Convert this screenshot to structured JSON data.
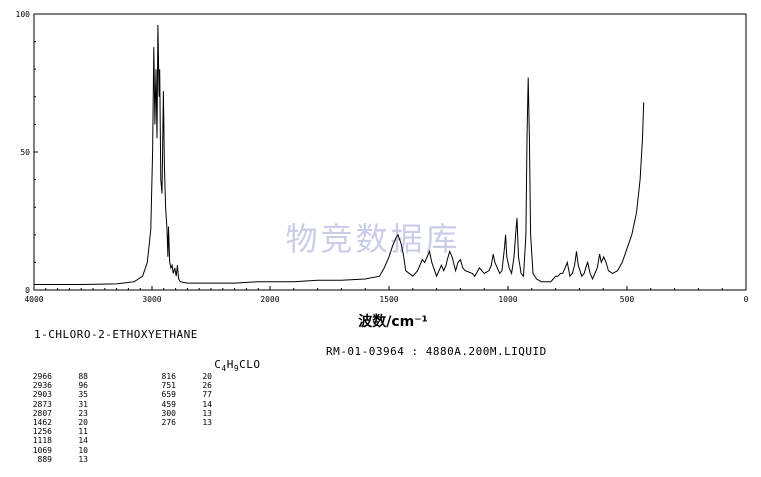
{
  "chart_data": {
    "type": "line",
    "xlabel": "波数/cm⁻¹",
    "ylabel": "",
    "xlim": [
      4000,
      0
    ],
    "ylim": [
      0,
      100
    ],
    "x_ticks": [
      "4000",
      "3000",
      "2000",
      "1500",
      "1000",
      "500",
      "0"
    ],
    "y_ticks": [
      "100",
      "50",
      "0"
    ],
    "watermark": "物竞数据库",
    "colors": {
      "line": "#000000",
      "watermark": "#c9cde8"
    },
    "series": [
      {
        "points": [
          [
            4000,
            2
          ],
          [
            3600,
            2
          ],
          [
            3300,
            2.2
          ],
          [
            3150,
            3
          ],
          [
            3080,
            5
          ],
          [
            3040,
            10
          ],
          [
            3010,
            22
          ],
          [
            2995,
            50
          ],
          [
            2985,
            88
          ],
          [
            2975,
            60
          ],
          [
            2966,
            80
          ],
          [
            2958,
            55
          ],
          [
            2950,
            96
          ],
          [
            2940,
            70
          ],
          [
            2935,
            80
          ],
          [
            2925,
            40
          ],
          [
            2915,
            35
          ],
          [
            2903,
            72
          ],
          [
            2895,
            45
          ],
          [
            2885,
            30
          ],
          [
            2873,
            22
          ],
          [
            2865,
            12
          ],
          [
            2860,
            23
          ],
          [
            2850,
            10
          ],
          [
            2840,
            8
          ],
          [
            2830,
            9
          ],
          [
            2820,
            6
          ],
          [
            2807,
            8
          ],
          [
            2795,
            5
          ],
          [
            2785,
            9
          ],
          [
            2775,
            4
          ],
          [
            2760,
            3
          ],
          [
            2700,
            2.5
          ],
          [
            2500,
            2.5
          ],
          [
            2300,
            2.5
          ],
          [
            2100,
            3
          ],
          [
            2000,
            3
          ],
          [
            1900,
            3
          ],
          [
            1800,
            3.5
          ],
          [
            1700,
            3.5
          ],
          [
            1600,
            4
          ],
          [
            1540,
            5
          ],
          [
            1520,
            8
          ],
          [
            1500,
            12
          ],
          [
            1485,
            16
          ],
          [
            1470,
            19
          ],
          [
            1462,
            20
          ],
          [
            1450,
            17
          ],
          [
            1440,
            13
          ],
          [
            1430,
            7
          ],
          [
            1400,
            5
          ],
          [
            1380,
            7
          ],
          [
            1370,
            9
          ],
          [
            1360,
            11
          ],
          [
            1350,
            10
          ],
          [
            1340,
            12
          ],
          [
            1330,
            14
          ],
          [
            1320,
            10
          ],
          [
            1300,
            5
          ],
          [
            1290,
            7
          ],
          [
            1280,
            9
          ],
          [
            1270,
            7
          ],
          [
            1260,
            9
          ],
          [
            1255,
            11
          ],
          [
            1245,
            14
          ],
          [
            1235,
            12
          ],
          [
            1220,
            7
          ],
          [
            1210,
            10
          ],
          [
            1200,
            11
          ],
          [
            1190,
            8
          ],
          [
            1180,
            7
          ],
          [
            1150,
            6
          ],
          [
            1140,
            5
          ],
          [
            1120,
            8
          ],
          [
            1100,
            6
          ],
          [
            1080,
            7
          ],
          [
            1070,
            9
          ],
          [
            1062,
            13
          ],
          [
            1055,
            10
          ],
          [
            1045,
            8
          ],
          [
            1035,
            6
          ],
          [
            1025,
            7
          ],
          [
            1015,
            15
          ],
          [
            1010,
            20
          ],
          [
            1005,
            12
          ],
          [
            995,
            8
          ],
          [
            985,
            6
          ],
          [
            975,
            12
          ],
          [
            968,
            20
          ],
          [
            962,
            26
          ],
          [
            956,
            12
          ],
          [
            945,
            6
          ],
          [
            935,
            5
          ],
          [
            925,
            20
          ],
          [
            920,
            55
          ],
          [
            915,
            77
          ],
          [
            910,
            55
          ],
          [
            905,
            20
          ],
          [
            895,
            6
          ],
          [
            880,
            4
          ],
          [
            860,
            3
          ],
          [
            840,
            3
          ],
          [
            820,
            3
          ],
          [
            810,
            4
          ],
          [
            800,
            5
          ],
          [
            790,
            5
          ],
          [
            780,
            6
          ],
          [
            770,
            6
          ],
          [
            760,
            8
          ],
          [
            751,
            10
          ],
          [
            740,
            5
          ],
          [
            730,
            6
          ],
          [
            720,
            9
          ],
          [
            712,
            14
          ],
          [
            705,
            9
          ],
          [
            690,
            5
          ],
          [
            680,
            6
          ],
          [
            670,
            9
          ],
          [
            665,
            10
          ],
          [
            655,
            6
          ],
          [
            645,
            4
          ],
          [
            635,
            6
          ],
          [
            625,
            8
          ],
          [
            615,
            13
          ],
          [
            608,
            10
          ],
          [
            598,
            12
          ],
          [
            588,
            10
          ],
          [
            578,
            7
          ],
          [
            560,
            6
          ],
          [
            540,
            7
          ],
          [
            520,
            10
          ],
          [
            500,
            15
          ],
          [
            480,
            20
          ],
          [
            460,
            28
          ],
          [
            445,
            40
          ],
          [
            435,
            55
          ],
          [
            430,
            68
          ]
        ]
      }
    ],
    "compound_name": "1-CHLORO-2-ETHOXYETHANE",
    "formula_prefix": "C",
    "formula_sub1": "4",
    "formula_mid": "H",
    "formula_sub2": "9",
    "formula_suffix": "CLO",
    "ref_text": "RM-01-03964 : 4880A.200M.LIQUID",
    "peak_table": {
      "col1": [
        [
          "2966",
          "88"
        ],
        [
          "2936",
          "96"
        ],
        [
          "2903",
          "35"
        ],
        [
          "2873",
          "31"
        ],
        [
          "2807",
          "23"
        ],
        [
          "1462",
          "20"
        ],
        [
          "1256",
          "11"
        ],
        [
          "1118",
          "14"
        ],
        [
          "1069",
          "10"
        ],
        [
          "889",
          "13"
        ]
      ],
      "col2": [
        [
          "816",
          "20"
        ],
        [
          "751",
          "26"
        ],
        [
          "659",
          "77"
        ],
        [
          "459",
          "14"
        ],
        [
          "300",
          "13"
        ],
        [
          "276",
          "13"
        ]
      ]
    }
  }
}
